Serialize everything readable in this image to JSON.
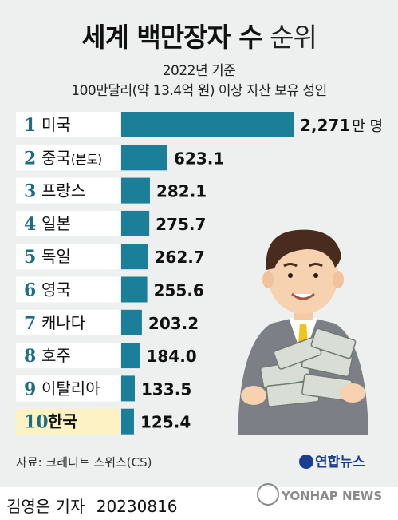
{
  "header": {
    "title_bold": "세계 백만장자 수",
    "title_light": "순위",
    "subtitle_line1": "2022년 기준",
    "subtitle_line2": "100만달러(약 13.4억 원) 이상 자산 보유 성인"
  },
  "chart_data": {
    "type": "bar",
    "orientation": "horizontal",
    "title": "세계 백만장자 수 순위",
    "unit_label": "만 명",
    "categories": [
      "미국",
      "중국",
      "프랑스",
      "일본",
      "독일",
      "영국",
      "캐나다",
      "호주",
      "이탈리아",
      "한국"
    ],
    "category_suffix": [
      "",
      "(본토)",
      "",
      "",
      "",
      "",
      "",
      "",
      "",
      ""
    ],
    "ranks": [
      "1",
      "2",
      "3",
      "4",
      "5",
      "6",
      "7",
      "8",
      "9",
      "10"
    ],
    "values": [
      2271,
      623.1,
      282.1,
      275.7,
      262.7,
      255.6,
      203.2,
      184.0,
      133.5,
      125.4
    ],
    "value_labels": [
      "2,271",
      "623.1",
      "282.1",
      "275.7",
      "262.7",
      "255.6",
      "203.2",
      "184.0",
      "133.5",
      "125.4"
    ],
    "highlight_index": 9,
    "colors": {
      "bar": "#1b7f9a",
      "label_bg": "#ffffff",
      "highlight_bg": "#fcf2c4",
      "rank": "#1b6e86"
    }
  },
  "footer": {
    "source": "자료: 크레디트 스위스(CS)",
    "logo": "연합뉴스",
    "reporter": "김영은 기자",
    "date": "20230816",
    "watermark": "YONHAP NEWS"
  },
  "illustration": {
    "icon": "businessman-with-money-icon"
  }
}
